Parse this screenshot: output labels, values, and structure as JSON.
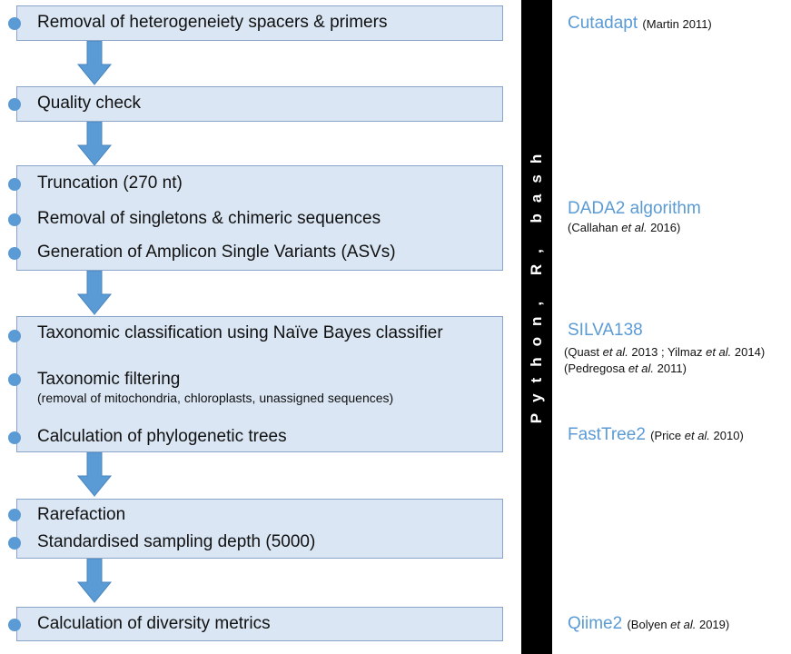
{
  "steps": [
    {
      "lines": [
        "Removal of heterogeneiety spacers & primers"
      ]
    },
    {
      "lines": [
        "Quality check"
      ]
    },
    {
      "lines": [
        "Truncation (270 nt)",
        "Removal of singletons & chimeric sequences",
        "Generation of Amplicon Single Variants (ASVs)"
      ]
    },
    {
      "lines": [
        "Taxonomic classification using Naïve Bayes classifier",
        "Taxonomic filtering",
        "Calculation of phylogenetic trees"
      ],
      "sublabel": "(removal of mitochondria, chloroplasts, unassigned sequences)"
    },
    {
      "lines": [
        "Rarefaction",
        "Standardised sampling depth  (5000)"
      ]
    },
    {
      "lines": [
        "Calculation of diversity metrics"
      ]
    }
  ],
  "sidebar_label": "Python, R, bash",
  "tools": {
    "cutadapt": {
      "name": "Cutadapt",
      "cite": "(Martin 2011)"
    },
    "dada2": {
      "name": "DADA2 algorithm",
      "cite_pre": "(Callahan ",
      "cite_etal": "et al.",
      "cite_post": " 2016)"
    },
    "silva": {
      "name": "SILVA138",
      "cite1_a": "(Quast ",
      "cite1_b": "et al.",
      "cite1_c": " 2013 ; Yilmaz ",
      "cite1_d": "et al.",
      "cite1_e": " 2014)",
      "cite2_a": "(Pedregosa ",
      "cite2_b": "et al.",
      "cite2_c": " 2011)"
    },
    "fasttree": {
      "name": "FastTree2",
      "cite_pre": "(Price ",
      "cite_etal": "et al.",
      "cite_post": " 2010)"
    },
    "qiime": {
      "name": "Qiime2",
      "cite_pre": "(Bolyen ",
      "cite_etal": "et al.",
      "cite_post": " 2019)"
    }
  },
  "colors": {
    "box_fill": "#dae6f4",
    "box_border": "#8aa4c8",
    "accent": "#5b9bd5",
    "bar": "#000000"
  }
}
